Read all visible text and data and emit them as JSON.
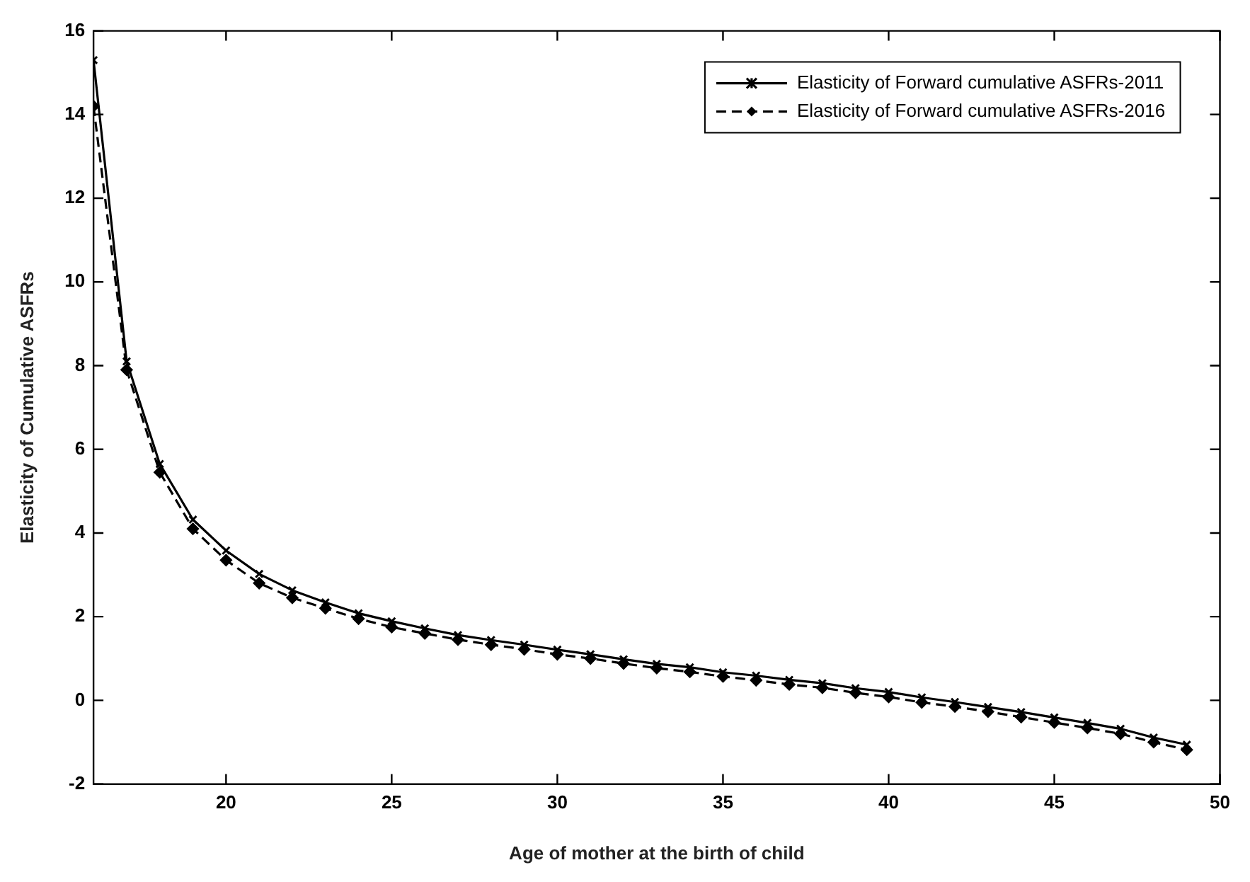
{
  "chart_data": {
    "type": "line",
    "xlabel": "Age of mother at the birth of child",
    "ylabel": "Elasticity of Cumulative ASFRs",
    "x": [
      16,
      17,
      18,
      19,
      20,
      21,
      22,
      23,
      24,
      25,
      26,
      27,
      28,
      29,
      30,
      31,
      32,
      33,
      34,
      35,
      36,
      37,
      38,
      39,
      40,
      41,
      42,
      43,
      44,
      45,
      46,
      47,
      48,
      49
    ],
    "series": [
      {
        "name": "Elasticity of Forward cumulative ASFRs-2011",
        "color": "#000000",
        "marker": "cross",
        "line_style": "solid",
        "values": [
          15.3,
          8.1,
          5.65,
          4.32,
          3.58,
          3.02,
          2.63,
          2.34,
          2.08,
          1.89,
          1.72,
          1.56,
          1.44,
          1.33,
          1.21,
          1.1,
          0.98,
          0.87,
          0.79,
          0.67,
          0.59,
          0.49,
          0.41,
          0.29,
          0.2,
          0.07,
          -0.04,
          -0.16,
          -0.28,
          -0.41,
          -0.54,
          -0.68,
          -0.89,
          -1.06
        ]
      },
      {
        "name": "Elasticity of Forward cumulative ASFRs-2016",
        "color": "#000000",
        "marker": "diamond",
        "line_style": "dashed",
        "values": [
          14.2,
          7.9,
          5.45,
          4.1,
          3.35,
          2.8,
          2.45,
          2.2,
          1.95,
          1.75,
          1.6,
          1.45,
          1.33,
          1.22,
          1.1,
          1.0,
          0.88,
          0.77,
          0.68,
          0.57,
          0.48,
          0.38,
          0.3,
          0.18,
          0.08,
          -0.05,
          -0.15,
          -0.27,
          -0.4,
          -0.53,
          -0.66,
          -0.8,
          -1.0,
          -1.18
        ]
      }
    ],
    "xlim": [
      16,
      50
    ],
    "xticks": [
      20,
      25,
      30,
      35,
      40,
      45,
      50
    ],
    "ylim": [
      -2,
      16
    ],
    "yticks": [
      -2,
      0,
      2,
      4,
      6,
      8,
      10,
      12,
      14,
      16
    ],
    "grid": false,
    "legend": "top right"
  }
}
